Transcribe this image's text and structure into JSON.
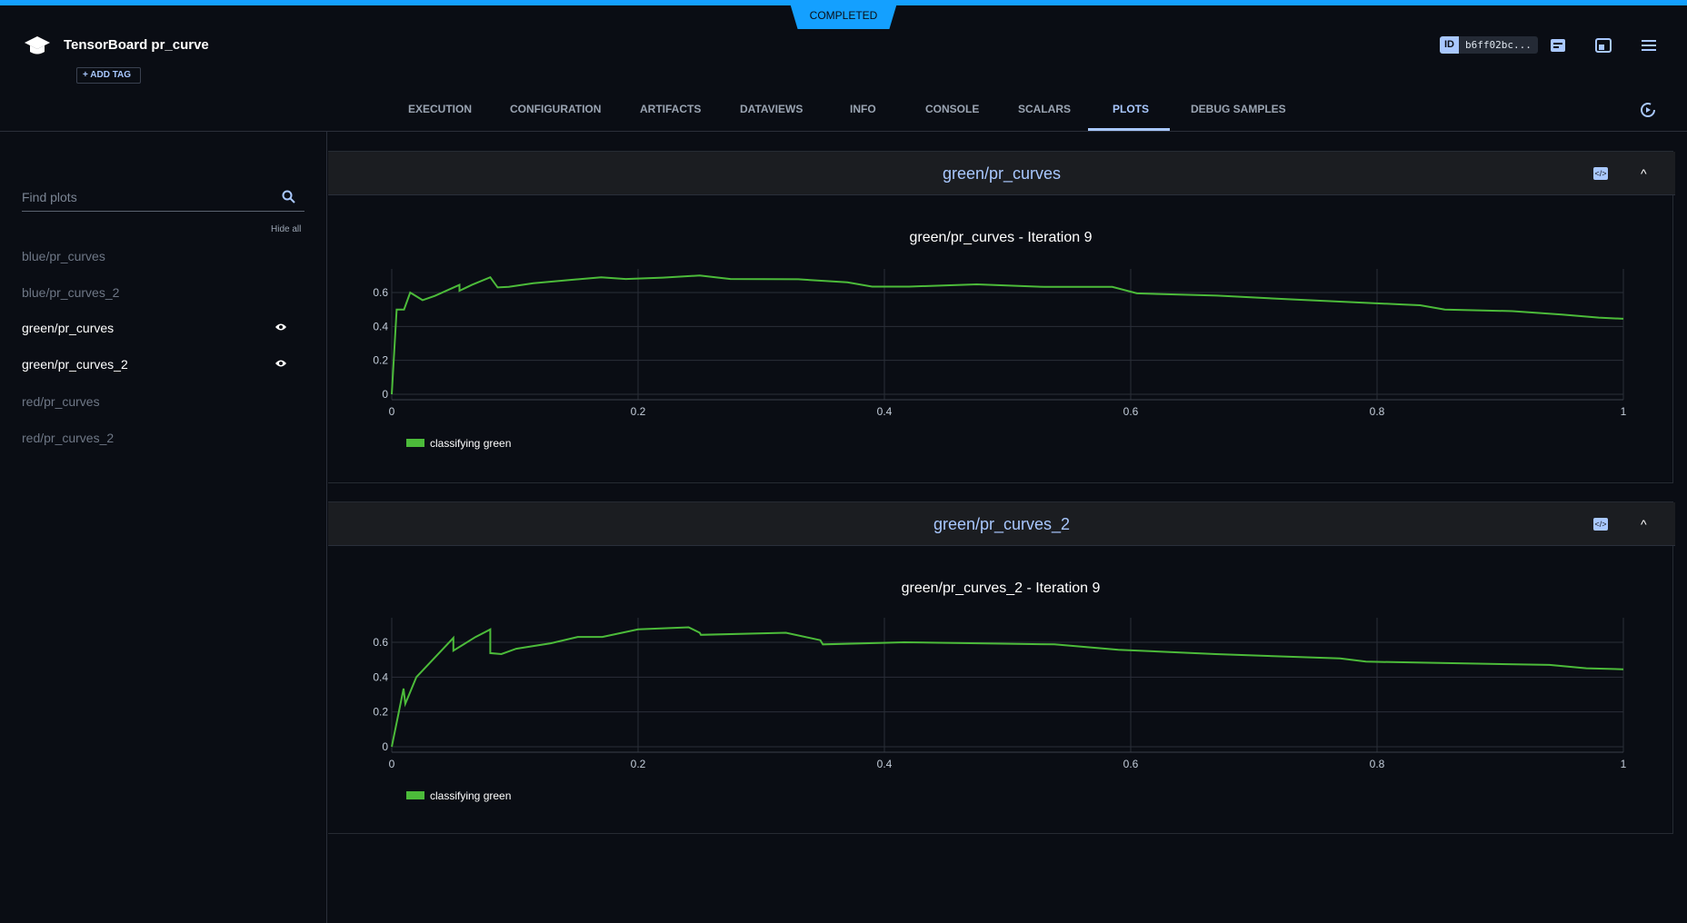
{
  "header": {
    "status": "COMPLETED",
    "title": "TensorBoard pr_curve",
    "add_tag": "+ ADD TAG",
    "id_label": "ID",
    "id_value": "b6ff02bc..."
  },
  "tabs": [
    "EXECUTION",
    "CONFIGURATION",
    "ARTIFACTS",
    "DATAVIEWS",
    "INFO",
    "CONSOLE",
    "SCALARS",
    "PLOTS",
    "DEBUG SAMPLES"
  ],
  "active_tab": "PLOTS",
  "sidebar": {
    "search_placeholder": "Find plots",
    "hide_all": "Hide all",
    "items": [
      {
        "label": "blue/pr_curves",
        "visible": false
      },
      {
        "label": "blue/pr_curves_2",
        "visible": false
      },
      {
        "label": "green/pr_curves",
        "visible": true
      },
      {
        "label": "green/pr_curves_2",
        "visible": true
      },
      {
        "label": "red/pr_curves",
        "visible": false
      },
      {
        "label": "red/pr_curves_2",
        "visible": false
      }
    ]
  },
  "panels": [
    {
      "header": "green/pr_curves"
    },
    {
      "header": "green/pr_curves_2"
    }
  ],
  "chart_data": [
    {
      "type": "line",
      "title": "green/pr_curves - Iteration 9",
      "xlim": [
        0,
        1
      ],
      "ylim": [
        0,
        0.73
      ],
      "xticks": [
        "0",
        "0.2",
        "0.4",
        "0.6",
        "0.8",
        "1"
      ],
      "yticks": [
        "0",
        "0.2",
        "0.4",
        "0.6"
      ],
      "legend": "bottom-left",
      "series": [
        {
          "name": "classifying green",
          "color": "#4cbb3a",
          "x": [
            0,
            0.004,
            0.01,
            0.015,
            0.025,
            0.035,
            0.055,
            0.055,
            0.065,
            0.08,
            0.086,
            0.095,
            0.115,
            0.17,
            0.19,
            0.22,
            0.25,
            0.275,
            0.33,
            0.37,
            0.39,
            0.42,
            0.475,
            0.53,
            0.585,
            0.605,
            0.67,
            0.73,
            0.82,
            0.835,
            0.855,
            0.91,
            0.95,
            0.98,
            1
          ],
          "y": [
            0,
            0.5,
            0.5,
            0.6,
            0.555,
            0.58,
            0.645,
            0.61,
            0.645,
            0.69,
            0.63,
            0.633,
            0.655,
            0.69,
            0.68,
            0.688,
            0.7,
            0.68,
            0.678,
            0.66,
            0.635,
            0.635,
            0.648,
            0.633,
            0.633,
            0.595,
            0.582,
            0.56,
            0.53,
            0.525,
            0.5,
            0.49,
            0.47,
            0.452,
            0.445
          ]
        }
      ]
    },
    {
      "type": "line",
      "title": "green/pr_curves_2 - Iteration 9",
      "xlim": [
        0,
        1
      ],
      "ylim": [
        0,
        0.73
      ],
      "xticks": [
        "0",
        "0.2",
        "0.4",
        "0.6",
        "0.8",
        "1"
      ],
      "yticks": [
        "0",
        "0.2",
        "0.4",
        "0.6"
      ],
      "legend": "bottom-left",
      "series": [
        {
          "name": "classifying green",
          "color": "#4cbb3a",
          "x": [
            0,
            0.0096,
            0.011,
            0.02,
            0.05,
            0.05,
            0.068,
            0.08,
            0.08,
            0.089,
            0.101,
            0.129,
            0.151,
            0.171,
            0.2,
            0.241,
            0.25,
            0.251,
            0.32,
            0.348,
            0.35,
            0.416,
            0.538,
            0.59,
            0.669,
            0.77,
            0.791,
            0.94,
            0.97,
            1
          ],
          "y": [
            0,
            0.334,
            0.247,
            0.4,
            0.625,
            0.552,
            0.63,
            0.674,
            0.538,
            0.532,
            0.563,
            0.594,
            0.631,
            0.631,
            0.674,
            0.686,
            0.655,
            0.643,
            0.655,
            0.612,
            0.588,
            0.6,
            0.588,
            0.557,
            0.532,
            0.507,
            0.489,
            0.47,
            0.451,
            0.445
          ]
        }
      ]
    }
  ]
}
